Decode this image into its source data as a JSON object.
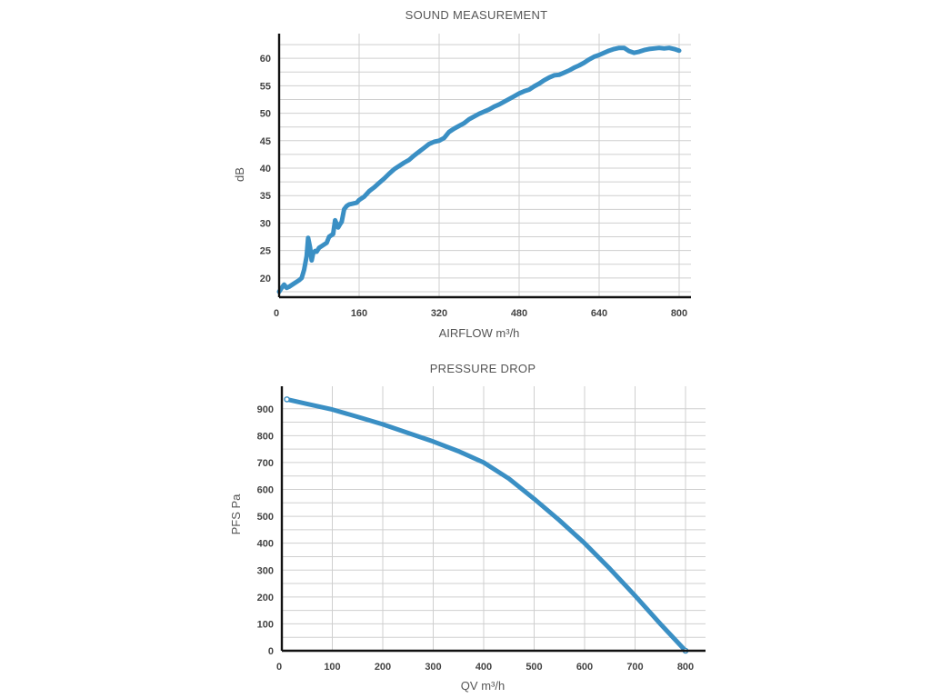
{
  "colors": {
    "line": "#3a8fc4",
    "grid": "#cfcfcf",
    "axis": "#111111",
    "text": "#444444",
    "endpoint_fill": "#ffffff"
  },
  "chart_data": [
    {
      "type": "line",
      "title": "SOUND MEASUREMENT",
      "xlabel": "AIRFLOW m³/h",
      "ylabel": "dB",
      "xlim": [
        0,
        800
      ],
      "ylim": [
        16.5,
        64
      ],
      "x_ticks": [
        0,
        160,
        320,
        480,
        640,
        800
      ],
      "y_ticks": [
        20,
        25,
        30,
        35,
        40,
        45,
        50,
        55,
        60
      ],
      "x_grid": [
        0,
        160,
        320,
        480,
        640,
        800
      ],
      "y_grid": [
        17.5,
        20,
        22.5,
        25,
        27.5,
        30,
        32.5,
        35,
        37.5,
        40,
        42.5,
        45,
        47.5,
        50,
        52.5,
        55,
        57.5,
        60,
        62.5
      ],
      "grid": true,
      "series": [
        {
          "x": [
            0,
            5,
            10,
            15,
            20,
            30,
            40,
            45,
            50,
            55,
            58,
            62,
            65,
            68,
            72,
            75,
            80,
            85,
            95,
            100,
            108,
            112,
            118,
            122,
            125,
            130,
            135,
            140,
            145,
            150,
            155,
            160,
            170,
            180,
            190,
            200,
            210,
            220,
            230,
            240,
            250,
            260,
            270,
            280,
            290,
            300,
            310,
            320,
            330,
            340,
            350,
            360,
            370,
            380,
            390,
            400,
            410,
            420,
            430,
            440,
            450,
            460,
            470,
            480,
            490,
            500,
            510,
            520,
            530,
            540,
            550,
            560,
            570,
            580,
            590,
            600,
            610,
            620,
            630,
            640,
            650,
            660,
            670,
            680,
            690,
            700,
            710,
            720,
            730,
            740,
            750,
            760,
            770,
            780,
            790,
            800
          ],
          "values": [
            17.5,
            18.2,
            18.8,
            18.2,
            18.4,
            19,
            19.6,
            20,
            21.5,
            24,
            27.3,
            25.5,
            23.2,
            24.5,
            24.9,
            24.8,
            25.5,
            25.8,
            26.4,
            27.5,
            28,
            30.5,
            29.2,
            29.8,
            30.2,
            32.5,
            33.1,
            33.4,
            33.5,
            33.6,
            33.7,
            34.2,
            34.8,
            35.8,
            36.5,
            37.3,
            38.1,
            39,
            39.8,
            40.4,
            41,
            41.5,
            42.3,
            43,
            43.7,
            44.4,
            44.8,
            45,
            45.5,
            46.6,
            47.2,
            47.7,
            48.2,
            48.9,
            49.4,
            49.9,
            50.3,
            50.7,
            51.2,
            51.6,
            52.1,
            52.6,
            53.1,
            53.6,
            54,
            54.3,
            54.9,
            55.4,
            56,
            56.5,
            56.9,
            57,
            57.4,
            57.8,
            58.3,
            58.7,
            59.2,
            59.8,
            60.3,
            60.6,
            61,
            61.4,
            61.7,
            61.9,
            61.9,
            61.3,
            61,
            61.2,
            61.5,
            61.7,
            61.8,
            61.9,
            61.8,
            61.9,
            61.7,
            61.4
          ]
        }
      ]
    },
    {
      "type": "line",
      "title": "PRESSURE DROP",
      "xlabel": "QV m³/h",
      "ylabel": "PFS Pa",
      "xlim": [
        0,
        800
      ],
      "ylim": [
        0,
        960
      ],
      "x_ticks": [
        0,
        100,
        200,
        300,
        400,
        500,
        600,
        700,
        800
      ],
      "y_ticks": [
        0,
        100,
        200,
        300,
        400,
        500,
        600,
        700,
        800,
        900
      ],
      "x_grid": [
        0,
        100,
        200,
        300,
        400,
        500,
        600,
        700,
        800
      ],
      "y_grid": [
        0,
        50,
        100,
        150,
        200,
        250,
        300,
        350,
        400,
        450,
        500,
        550,
        600,
        650,
        700,
        750,
        800,
        850,
        900
      ],
      "grid": true,
      "series": [
        {
          "x": [
            10,
            50,
            100,
            150,
            200,
            250,
            300,
            350,
            400,
            450,
            500,
            550,
            600,
            650,
            700,
            750,
            800
          ],
          "values": [
            935,
            918,
            897,
            870,
            842,
            810,
            778,
            742,
            700,
            640,
            565,
            485,
            400,
            305,
            205,
            100,
            0
          ],
          "markers_at_ends": true
        }
      ]
    }
  ]
}
